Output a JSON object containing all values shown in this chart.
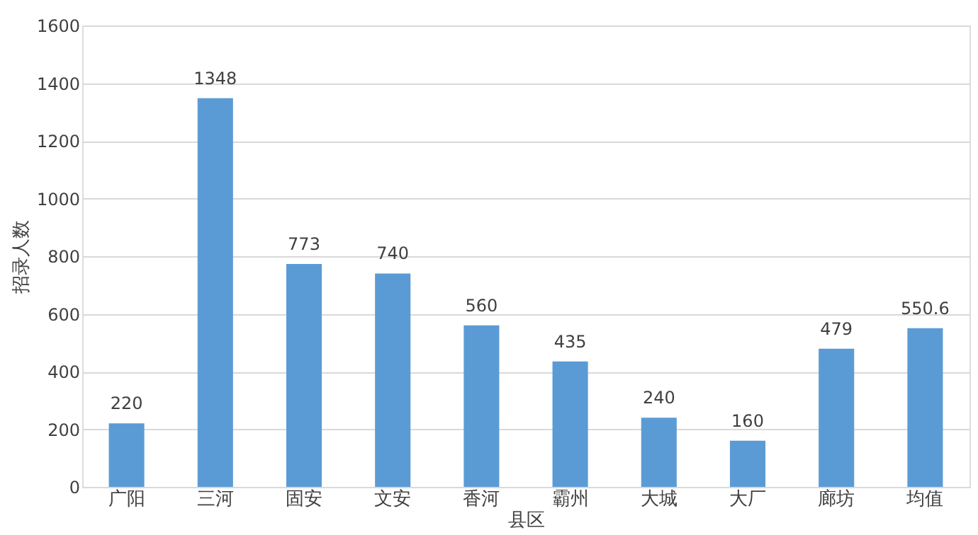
{
  "chart_data": {
    "type": "bar",
    "categories": [
      "广阳",
      "三河",
      "固安",
      "文安",
      "香河",
      "霸州",
      "大城",
      "大厂",
      "廊坊",
      "均值"
    ],
    "values": [
      220,
      1348,
      773,
      740,
      560,
      435,
      240,
      160,
      479,
      550.6
    ],
    "color": "#5b9bd5",
    "xlabel": "县区",
    "ylabel": "招录人数",
    "ylim": [
      0,
      1600
    ],
    "yticks": [
      0,
      200,
      400,
      600,
      800,
      1000,
      1200,
      1400,
      1600
    ],
    "grid": "y",
    "data_labels": true
  }
}
